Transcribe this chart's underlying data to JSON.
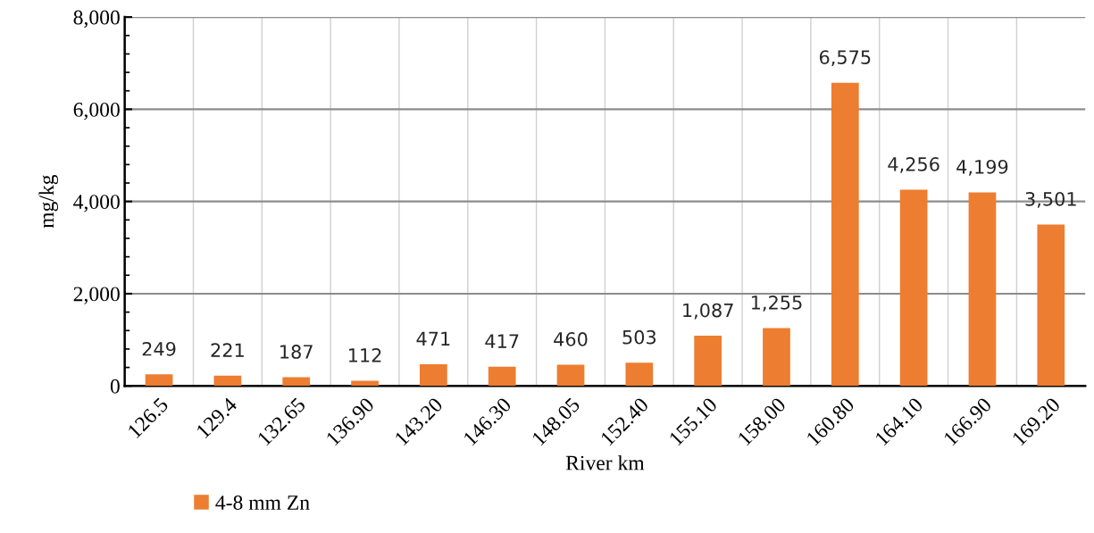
{
  "chart_data": {
    "type": "bar",
    "xlabel": "River km",
    "ylabel": "mg/kg",
    "categories": [
      "126.5",
      "129.4",
      "132.65",
      "136.90",
      "143.20",
      "146.30",
      "148.05",
      "152.40",
      "155.10",
      "158.00",
      "160.80",
      "164.10",
      "166.90",
      "169.20"
    ],
    "series": [
      {
        "name": "4-8 mm Zn",
        "color": "#ed7d31",
        "values": [
          249,
          221,
          187,
          112,
          471,
          417,
          460,
          503,
          1087,
          1255,
          6575,
          4256,
          4199,
          3501
        ],
        "value_labels": [
          "249",
          "221",
          "187",
          "112",
          "471",
          "417",
          "460",
          "503",
          "1,087",
          "1,255",
          "6,575",
          "4,256",
          "4,199",
          "3,501"
        ]
      }
    ],
    "ylim": [
      0,
      8000
    ],
    "yticks": [
      {
        "value": 0,
        "label": "0"
      },
      {
        "value": 2000,
        "label": "2,000"
      },
      {
        "value": 4000,
        "label": "4,000"
      },
      {
        "value": 6000,
        "label": "6,000"
      },
      {
        "value": 8000,
        "label": "8,000"
      }
    ],
    "grid": true,
    "legend": "bottom left"
  }
}
